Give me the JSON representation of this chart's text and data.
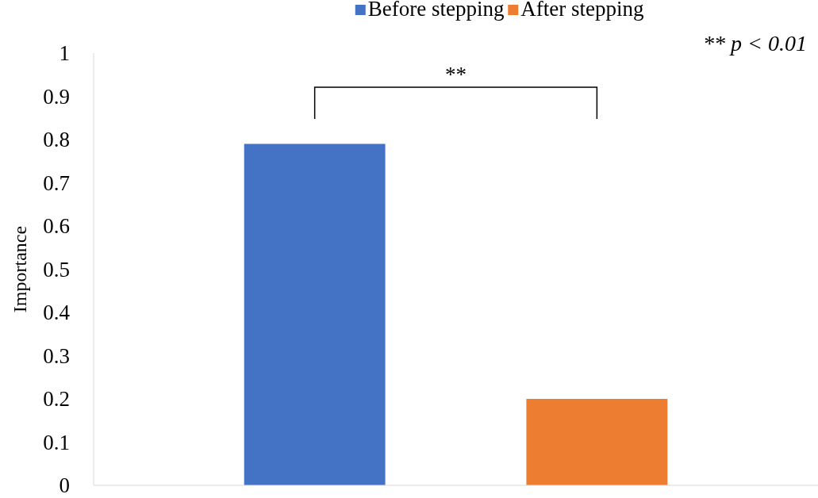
{
  "chart_data": {
    "type": "bar",
    "ylabel": "Importance",
    "categories": [
      null
    ],
    "series": [
      {
        "name": "Before stepping",
        "color": "#4472c4",
        "values": [
          0.79
        ]
      },
      {
        "name": "After stepping",
        "color": "#ed7d31",
        "values": [
          0.2
        ]
      }
    ],
    "ylim": [
      0,
      1
    ],
    "yticks": [
      0,
      0.1,
      0.2,
      0.3,
      0.4,
      0.5,
      0.6,
      0.7,
      0.8,
      0.9,
      1
    ],
    "grid": false,
    "legend": "top",
    "annotations": [
      "**",
      "** p < 0.01"
    ]
  }
}
